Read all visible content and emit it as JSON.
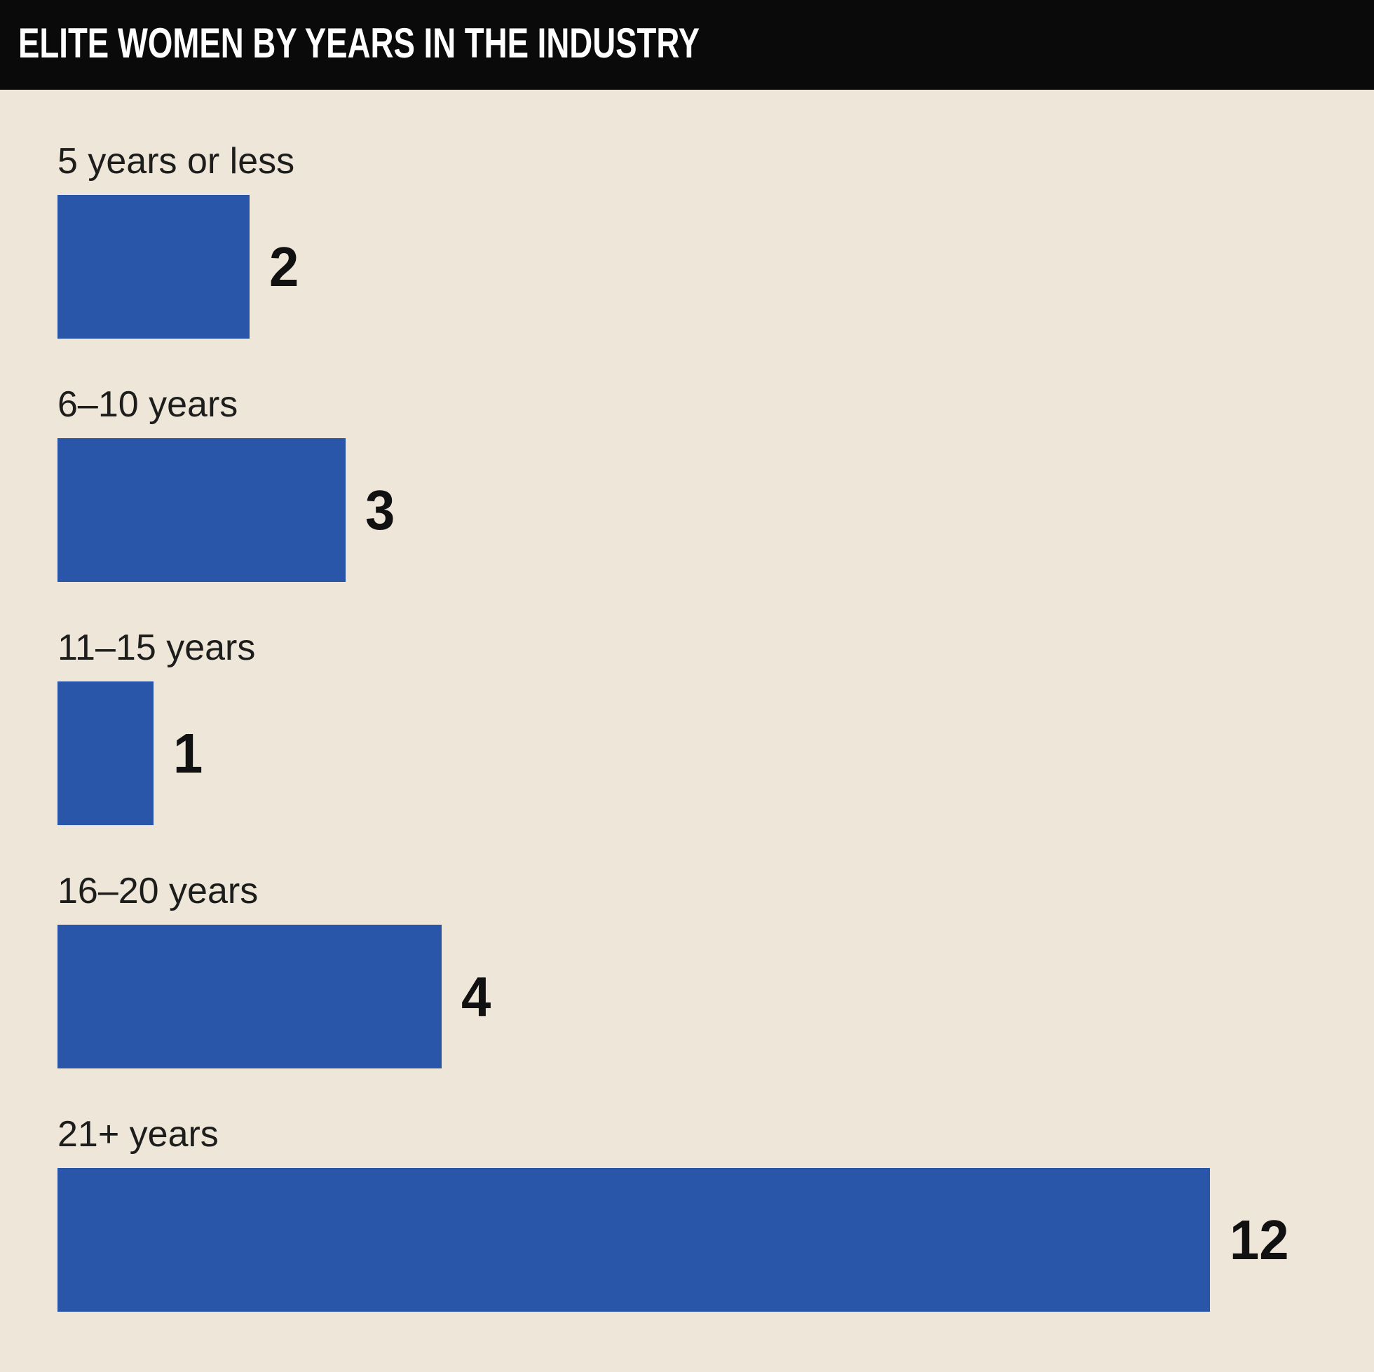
{
  "header": {
    "title": "ELITE WOMEN BY YEARS IN THE INDUSTRY",
    "background_color": "#0a0a0a",
    "text_color": "#ffffff"
  },
  "chart_data": {
    "type": "bar",
    "orientation": "horizontal",
    "title": "ELITE WOMEN BY YEARS IN THE INDUSTRY",
    "categories": [
      "5 years or less",
      "6–10 years",
      "11–15 years",
      "16–20 years",
      "21+ years"
    ],
    "values": [
      2,
      3,
      1,
      4,
      12
    ],
    "xlim": [
      0,
      12
    ],
    "grid": false,
    "legend": null,
    "value_label_position": "right-of-bar",
    "bar_color": "#2956a8",
    "background_color": "#ede6d9",
    "label_color": "#1d1d1b",
    "value_color": "#111111"
  }
}
